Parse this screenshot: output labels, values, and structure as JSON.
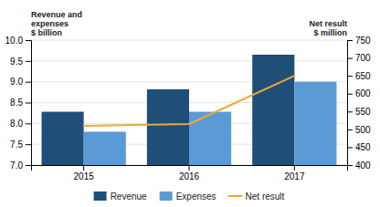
{
  "chart_data": {
    "type": "bar",
    "categories": [
      "2015",
      "2016",
      "2017"
    ],
    "series": [
      {
        "name": "Revenue",
        "color": "#1f4e79",
        "values": [
          8.28,
          8.82,
          9.65
        ]
      },
      {
        "name": "Expenses",
        "color": "#5b9bd5",
        "values": [
          7.8,
          8.28,
          9.0
        ]
      },
      {
        "name": "Net result",
        "color": "#f0a830",
        "values": [
          510,
          515,
          650
        ],
        "type": "line",
        "axis": "y2"
      }
    ],
    "ylabel": "Revenue and\nexpenses\n$ billion",
    "y2label": "Net result\n$ million",
    "ylim": [
      7.0,
      10.0
    ],
    "yticks": [
      {
        "value": 7.0,
        "label": "7.0"
      },
      {
        "value": 7.5,
        "label": "7.5"
      },
      {
        "value": 8.0,
        "label": "8.0"
      },
      {
        "value": 8.5,
        "label": "8.5"
      },
      {
        "value": 9.0,
        "label": "9.0"
      },
      {
        "value": 9.5,
        "label": "9.5"
      },
      {
        "value": 10.0,
        "label": "10.0"
      }
    ],
    "y2lim": [
      400,
      750
    ],
    "y2ticks": [
      400,
      450,
      500,
      550,
      600,
      650,
      700,
      750
    ],
    "grid": true,
    "legend": "bottom"
  }
}
